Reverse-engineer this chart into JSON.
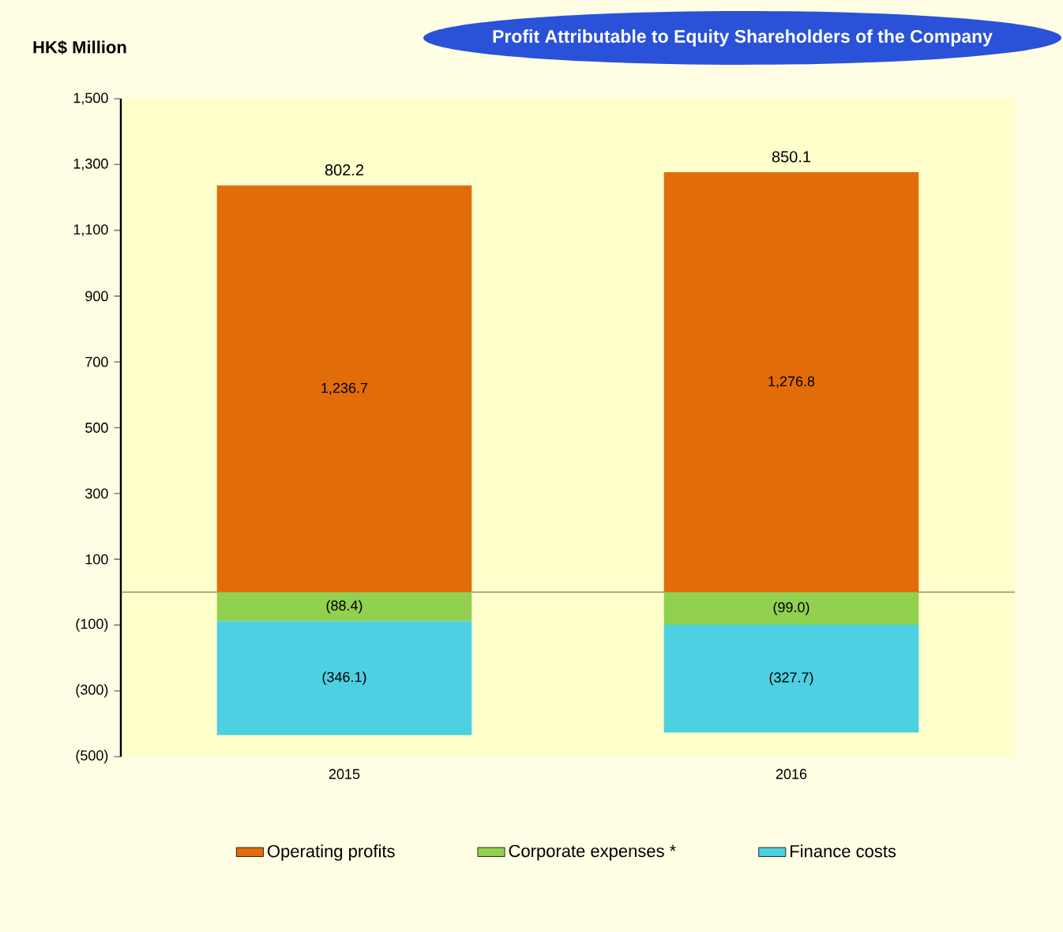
{
  "chart_data": {
    "type": "bar",
    "title": "Profit Attributable to Equity Shareholders of the Company",
    "ylabel": "HK$ Million",
    "categories": [
      "2015",
      "2016"
    ],
    "series": [
      {
        "name": "Operating profits",
        "color": "#e36c0a",
        "values": [
          1236.7,
          1276.8
        ],
        "value_labels": [
          "1,236.7",
          "1,276.8"
        ]
      },
      {
        "name": "Corporate expenses *",
        "color": "#92d050",
        "values": [
          -88.4,
          -99.0
        ],
        "value_labels": [
          "(88.4)",
          "(99.0)"
        ]
      },
      {
        "name": "Finance costs",
        "color": "#4dd0e1",
        "values": [
          -346.1,
          -327.7
        ],
        "value_labels": [
          "(346.1)",
          "(327.7)"
        ]
      }
    ],
    "stacked": true,
    "totals": [
      "802.2",
      "850.1"
    ],
    "ylim": [
      -500,
      1500
    ],
    "yticks": [
      {
        "value": -500,
        "label": "(500)"
      },
      {
        "value": -300,
        "label": "(300)"
      },
      {
        "value": -100,
        "label": "(100)"
      },
      {
        "value": 100,
        "label": "100"
      },
      {
        "value": 300,
        "label": "300"
      },
      {
        "value": 500,
        "label": "500"
      },
      {
        "value": 700,
        "label": "700"
      },
      {
        "value": 900,
        "label": "900"
      },
      {
        "value": 1100,
        "label": "1,100"
      },
      {
        "value": 1300,
        "label": "1,300"
      },
      {
        "value": 1500,
        "label": "1,500"
      }
    ],
    "legend": "bottom"
  }
}
